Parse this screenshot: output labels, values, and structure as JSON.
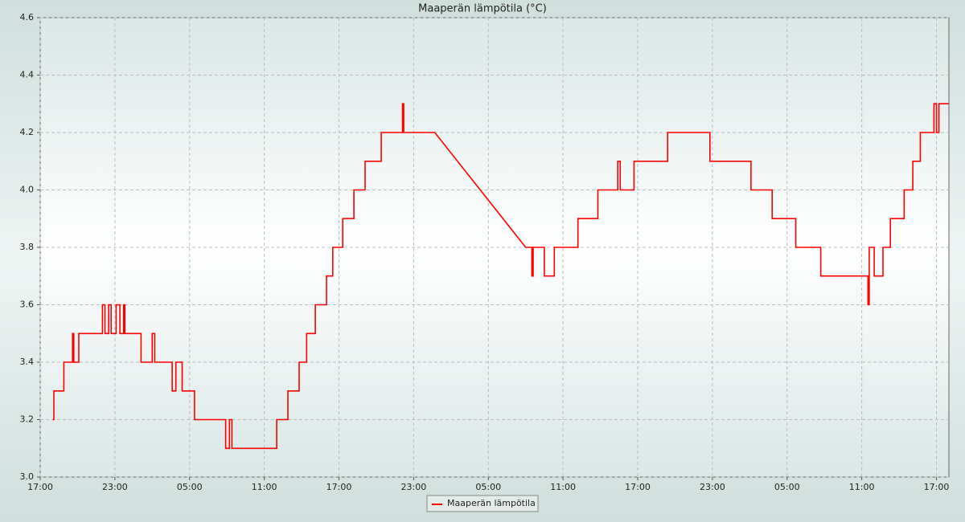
{
  "chart_data": {
    "type": "line",
    "title": "Maaperän lämpötila (°C)",
    "xlim": [
      0,
      73
    ],
    "xticks": [
      {
        "value": 0,
        "label": "17:00"
      },
      {
        "value": 6,
        "label": "23:00"
      },
      {
        "value": 12,
        "label": "05:00"
      },
      {
        "value": 18,
        "label": "11:00"
      },
      {
        "value": 24,
        "label": "17:00"
      },
      {
        "value": 30,
        "label": "23:00"
      },
      {
        "value": 36,
        "label": "05:00"
      },
      {
        "value": 42,
        "label": "11:00"
      },
      {
        "value": 48,
        "label": "17:00"
      },
      {
        "value": 54,
        "label": "23:00"
      },
      {
        "value": 60,
        "label": "05:00"
      },
      {
        "value": 66,
        "label": "11:00"
      },
      {
        "value": 72,
        "label": "17:00"
      }
    ],
    "ylim": [
      3.0,
      4.6
    ],
    "yticks": [
      {
        "value": 3,
        "label": "3.0"
      },
      3.2,
      3.4,
      3.6,
      3.8,
      {
        "value": 4,
        "label": "4.0"
      },
      4.2,
      4.4,
      4.6
    ],
    "grid": true,
    "legend": "bottom",
    "series": [
      {
        "name": "Maaperän lämpötila",
        "color": "#ff0000",
        "x": [
          1.0,
          1.1,
          1.1,
          1.9,
          1.9,
          2.6,
          2.6,
          2.7,
          2.7,
          3.1,
          3.1,
          5.0,
          5.0,
          5.2,
          5.2,
          5.5,
          5.5,
          5.7,
          5.7,
          6.1,
          6.1,
          6.4,
          6.4,
          6.7,
          6.7,
          6.8,
          6.8,
          8.1,
          8.1,
          9.0,
          9.0,
          9.2,
          9.2,
          10.6,
          10.6,
          10.9,
          10.9,
          11.4,
          11.4,
          12.4,
          12.4,
          14.9,
          14.9,
          15.2,
          15.2,
          15.4,
          15.4,
          19.0,
          19.0,
          19.9,
          19.9,
          20.8,
          20.8,
          21.4,
          21.4,
          22.1,
          22.1,
          23.0,
          23.0,
          23.5,
          23.5,
          24.3,
          24.3,
          25.2,
          25.2,
          26.1,
          26.1,
          27.4,
          27.4,
          29.1,
          29.1,
          29.2,
          29.2,
          31.7,
          39.0,
          39.5,
          39.5,
          39.6,
          39.6,
          40.5,
          40.5,
          41.3,
          41.3,
          43.2,
          43.2,
          44.8,
          44.8,
          46.4,
          46.4,
          46.6,
          46.6,
          47.7,
          47.7,
          50.4,
          50.4,
          53.8,
          53.8,
          57.1,
          57.1,
          58.8,
          58.8,
          60.7,
          60.7,
          62.7,
          62.7,
          66.5,
          66.5,
          66.6,
          66.6,
          67.0,
          67.0,
          67.7,
          67.7,
          68.3,
          68.3,
          69.4,
          69.4,
          70.1,
          70.1,
          70.7,
          70.7,
          71.8,
          71.8,
          72.0,
          72.0,
          72.2,
          72.2,
          73.0
        ],
        "values": [
          3.2,
          3.2,
          3.3,
          3.3,
          3.4,
          3.4,
          3.5,
          3.5,
          3.4,
          3.4,
          3.5,
          3.5,
          3.6,
          3.6,
          3.5,
          3.5,
          3.6,
          3.6,
          3.5,
          3.5,
          3.6,
          3.6,
          3.5,
          3.5,
          3.6,
          3.6,
          3.5,
          3.5,
          3.4,
          3.4,
          3.5,
          3.5,
          3.4,
          3.4,
          3.3,
          3.3,
          3.4,
          3.4,
          3.3,
          3.3,
          3.2,
          3.2,
          3.1,
          3.1,
          3.2,
          3.2,
          3.1,
          3.1,
          3.2,
          3.2,
          3.3,
          3.3,
          3.4,
          3.4,
          3.5,
          3.5,
          3.6,
          3.6,
          3.7,
          3.7,
          3.8,
          3.8,
          3.9,
          3.9,
          4.0,
          4.0,
          4.1,
          4.1,
          4.2,
          4.2,
          4.3,
          4.3,
          4.2,
          4.2,
          3.8,
          3.8,
          3.7,
          3.7,
          3.8,
          3.8,
          3.7,
          3.7,
          3.8,
          3.8,
          3.9,
          3.9,
          4.0,
          4.0,
          4.1,
          4.1,
          4.0,
          4.0,
          4.1,
          4.1,
          4.2,
          4.2,
          4.1,
          4.1,
          4.0,
          4.0,
          3.9,
          3.9,
          3.8,
          3.8,
          3.7,
          3.7,
          3.6,
          3.6,
          3.8,
          3.8,
          3.7,
          3.7,
          3.8,
          3.8,
          3.9,
          3.9,
          4.0,
          4.0,
          4.1,
          4.1,
          4.2,
          4.2,
          4.3,
          4.3,
          4.2,
          4.2,
          4.3,
          4.3
        ]
      }
    ]
  }
}
